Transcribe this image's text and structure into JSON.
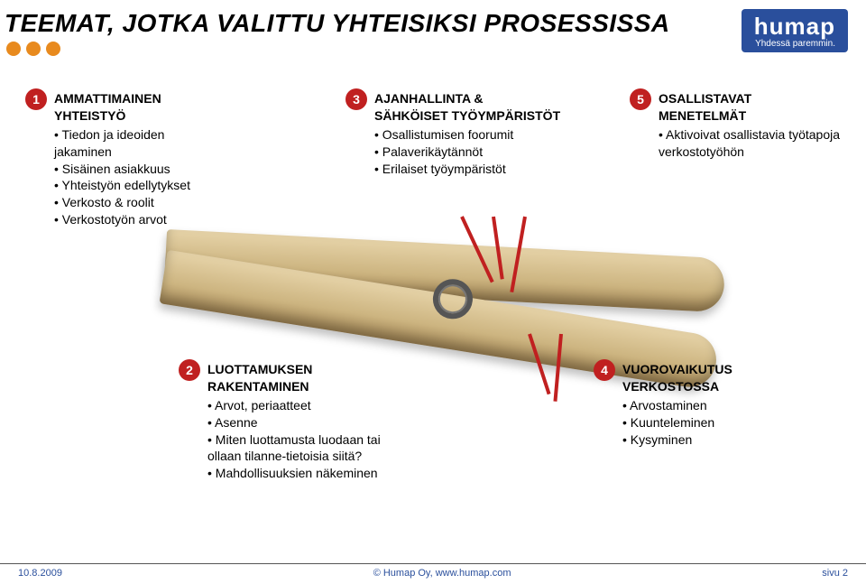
{
  "header": {
    "title": "TEEMAT, JOTKA VALITTU YHTEISIKSI PROSESSISSA",
    "logo_main": "humap",
    "logo_sub": "Yhdessä paremmin."
  },
  "blocks": {
    "b1": {
      "num": "1",
      "title1": "AMMATTIMAINEN",
      "title2": "YHTEISTYÖ",
      "i1": "Tiedon ja ideoiden jakaminen",
      "i2": "Sisäinen asiakkuus",
      "i3": "Yhteistyön edellytykset",
      "i4": "Verkosto & roolit",
      "i5": "Verkostotyön arvot"
    },
    "b2": {
      "num": "2",
      "title1": "LUOTTAMUKSEN",
      "title2": "RAKENTAMINEN",
      "i1": "Arvot, periaatteet",
      "i2": "Asenne",
      "i3": "Miten luottamusta luodaan tai ollaan tilanne-tietoisia siitä?",
      "i4": "Mahdollisuuksien näkeminen"
    },
    "b3": {
      "num": "3",
      "title1": "AJANHALLINTA &",
      "title2": "SÄHKÖISET TYÖYMPÄRISTÖT",
      "i1": "Osallistumisen foorumit",
      "i2": "Palaverikäytännöt",
      "i3": "Erilaiset työympäristöt"
    },
    "b4": {
      "num": "4",
      "title1": "VUOROVAIKUTUS",
      "title2": "VERKOSTOSSA",
      "i1": "Arvostaminen",
      "i2": "Kuunteleminen",
      "i3": "Kysyminen"
    },
    "b5": {
      "num": "5",
      "title1": "OSALLISTAVAT",
      "title2": "MENETELMÄT",
      "i1": "Aktivoivat osallistavia työtapoja verkostotyöhön"
    }
  },
  "footer": {
    "left": "10.8.2009",
    "center": "© Humap Oy, www.humap.com",
    "right": "sivu 2"
  },
  "colors": {
    "accent_red": "#c02020",
    "dot_orange": "#e88a1e",
    "logo_blue": "#2a4f9c"
  }
}
